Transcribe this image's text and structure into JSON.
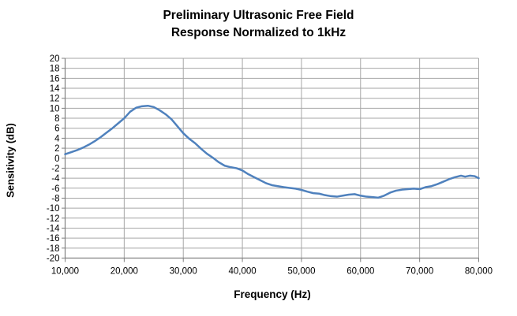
{
  "title": {
    "line1": "Preliminary Ultrasonic Free Field",
    "line2": "Response Normalized to 1kHz"
  },
  "colors": {
    "line": "#4F81BD",
    "gridline": "#A6A6A6",
    "axis": "#808080",
    "text": "#000000",
    "background": "#FFFFFF"
  },
  "chart_data": {
    "type": "line",
    "title": "Preliminary Ultrasonic Free Field Response Normalized to 1kHz",
    "xlabel": "Frequency (Hz)",
    "ylabel": "Sensitivity (dB)",
    "xlim": [
      10000,
      80000
    ],
    "ylim": [
      -20,
      20
    ],
    "grid": true,
    "legend": false,
    "x_ticks": [
      {
        "value": 10000,
        "label": "10,000"
      },
      {
        "value": 20000,
        "label": "20,000"
      },
      {
        "value": 30000,
        "label": "30,000"
      },
      {
        "value": 40000,
        "label": "40,000"
      },
      {
        "value": 50000,
        "label": "50,000"
      },
      {
        "value": 60000,
        "label": "60,000"
      },
      {
        "value": 70000,
        "label": "70,000"
      },
      {
        "value": 80000,
        "label": "80,000"
      }
    ],
    "y_ticks": [
      {
        "value": 20,
        "label": "20"
      },
      {
        "value": 18,
        "label": "18"
      },
      {
        "value": 16,
        "label": "16"
      },
      {
        "value": 14,
        "label": "14"
      },
      {
        "value": 12,
        "label": "12"
      },
      {
        "value": 10,
        "label": "10"
      },
      {
        "value": 8,
        "label": "8"
      },
      {
        "value": 6,
        "label": "6"
      },
      {
        "value": 4,
        "label": "4"
      },
      {
        "value": 2,
        "label": "2"
      },
      {
        "value": 0,
        "label": "0"
      },
      {
        "value": -2,
        "label": "-2"
      },
      {
        "value": -4,
        "label": "-4"
      },
      {
        "value": -6,
        "label": "-6"
      },
      {
        "value": -8,
        "label": "-8"
      },
      {
        "value": -10,
        "label": "-10"
      },
      {
        "value": -12,
        "label": "-12"
      },
      {
        "value": -14,
        "label": "-14"
      },
      {
        "value": -16,
        "label": "-16"
      },
      {
        "value": -18,
        "label": "-18"
      },
      {
        "value": -20,
        "label": "-20"
      }
    ],
    "series": [
      {
        "name": "Free field response normalized to 1kHz",
        "points": [
          [
            10000,
            0.8
          ],
          [
            11000,
            1.2
          ],
          [
            12000,
            1.6
          ],
          [
            13000,
            2.1
          ],
          [
            14000,
            2.7
          ],
          [
            15000,
            3.4
          ],
          [
            16000,
            4.2
          ],
          [
            17000,
            5.1
          ],
          [
            18000,
            6.0
          ],
          [
            19000,
            7.0
          ],
          [
            20000,
            8.0
          ],
          [
            21000,
            9.3
          ],
          [
            22000,
            10.1
          ],
          [
            23000,
            10.4
          ],
          [
            24000,
            10.5
          ],
          [
            25000,
            10.25
          ],
          [
            26000,
            9.6
          ],
          [
            27000,
            8.8
          ],
          [
            28000,
            7.8
          ],
          [
            29000,
            6.4
          ],
          [
            30000,
            5.0
          ],
          [
            31000,
            3.9
          ],
          [
            32000,
            3.0
          ],
          [
            33000,
            1.9
          ],
          [
            34000,
            0.9
          ],
          [
            35000,
            0.1
          ],
          [
            36000,
            -0.8
          ],
          [
            37000,
            -1.5
          ],
          [
            38000,
            -1.8
          ],
          [
            39000,
            -2.0
          ],
          [
            40000,
            -2.45
          ],
          [
            41000,
            -3.2
          ],
          [
            42000,
            -3.8
          ],
          [
            43000,
            -4.4
          ],
          [
            44000,
            -5.0
          ],
          [
            45000,
            -5.4
          ],
          [
            46000,
            -5.6
          ],
          [
            47000,
            -5.8
          ],
          [
            48000,
            -5.95
          ],
          [
            49000,
            -6.1
          ],
          [
            50000,
            -6.35
          ],
          [
            51000,
            -6.7
          ],
          [
            52000,
            -7.0
          ],
          [
            53000,
            -7.1
          ],
          [
            54000,
            -7.4
          ],
          [
            55000,
            -7.6
          ],
          [
            56000,
            -7.7
          ],
          [
            57000,
            -7.5
          ],
          [
            58000,
            -7.3
          ],
          [
            59000,
            -7.2
          ],
          [
            60000,
            -7.5
          ],
          [
            61000,
            -7.7
          ],
          [
            62000,
            -7.8
          ],
          [
            63000,
            -7.9
          ],
          [
            64000,
            -7.5
          ],
          [
            65000,
            -6.9
          ],
          [
            66000,
            -6.5
          ],
          [
            67000,
            -6.3
          ],
          [
            68000,
            -6.2
          ],
          [
            69000,
            -6.1
          ],
          [
            70000,
            -6.2
          ],
          [
            71000,
            -5.8
          ],
          [
            72000,
            -5.6
          ],
          [
            73000,
            -5.2
          ],
          [
            74000,
            -4.7
          ],
          [
            75000,
            -4.2
          ],
          [
            76000,
            -3.8
          ],
          [
            77000,
            -3.5
          ],
          [
            77700,
            -3.7
          ],
          [
            78500,
            -3.5
          ],
          [
            79300,
            -3.6
          ],
          [
            80000,
            -4.0
          ]
        ]
      }
    ]
  }
}
